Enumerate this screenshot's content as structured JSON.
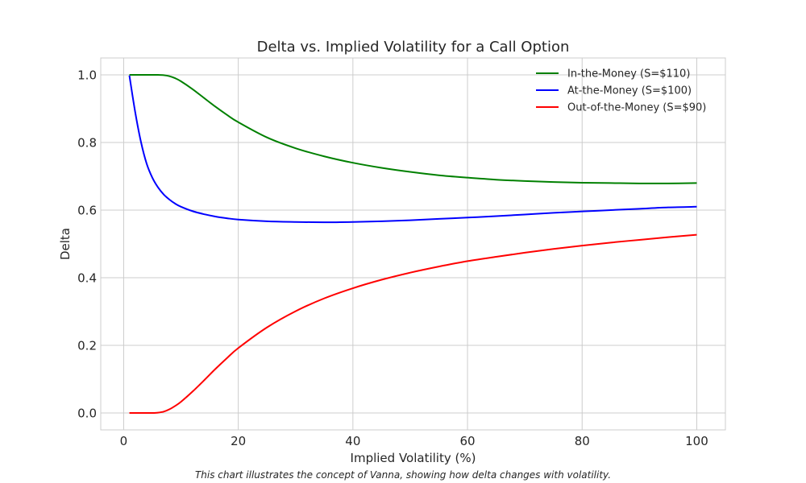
{
  "chart_data": {
    "type": "line",
    "title": "Delta vs. Implied Volatility for a Call Option",
    "xlabel": "Implied Volatility (%)",
    "ylabel": "Delta",
    "xlim": [
      -4,
      105
    ],
    "ylim": [
      -0.05,
      1.05
    ],
    "xticks": [
      0,
      20,
      40,
      60,
      80,
      100
    ],
    "yticks": [
      0.0,
      0.2,
      0.4,
      0.6,
      0.8,
      1.0
    ],
    "xtick_labels": [
      "0",
      "20",
      "40",
      "60",
      "80",
      "100"
    ],
    "ytick_labels": [
      "0.0",
      "0.2",
      "0.4",
      "0.6",
      "0.8",
      "1.0"
    ],
    "grid": true,
    "legend_position": "top-right",
    "x": [
      1,
      2,
      3,
      4,
      5,
      6,
      7,
      8,
      9,
      10,
      12,
      14,
      16,
      18,
      20,
      25,
      30,
      35,
      40,
      45,
      50,
      55,
      60,
      65,
      70,
      75,
      80,
      85,
      90,
      95,
      100
    ],
    "series": [
      {
        "name": "In-the-Money (S=$110)",
        "color": "#008000",
        "values": [
          1.0,
          1.0,
          1.0,
          1.0,
          1.0,
          1.0,
          0.999,
          0.996,
          0.99,
          0.981,
          0.958,
          0.932,
          0.906,
          0.882,
          0.86,
          0.815,
          0.783,
          0.759,
          0.74,
          0.725,
          0.713,
          0.703,
          0.696,
          0.69,
          0.686,
          0.683,
          0.681,
          0.68,
          0.679,
          0.679,
          0.68
        ]
      },
      {
        "name": "At-the-Money (S=$100)",
        "color": "#0000ff",
        "values": [
          0.998,
          0.891,
          0.803,
          0.738,
          0.696,
          0.667,
          0.646,
          0.631,
          0.619,
          0.61,
          0.597,
          0.588,
          0.581,
          0.576,
          0.572,
          0.567,
          0.565,
          0.564,
          0.565,
          0.567,
          0.57,
          0.574,
          0.578,
          0.582,
          0.587,
          0.592,
          0.596,
          0.6,
          0.604,
          0.608,
          0.61
        ]
      },
      {
        "name": "Out-of-the-Money (S=$90)",
        "color": "#ff0000",
        "values": [
          0.0,
          0.0,
          0.0,
          0.0,
          0.0,
          0.001,
          0.004,
          0.011,
          0.021,
          0.033,
          0.063,
          0.096,
          0.13,
          0.162,
          0.192,
          0.253,
          0.301,
          0.339,
          0.369,
          0.394,
          0.415,
          0.433,
          0.449,
          0.462,
          0.474,
          0.485,
          0.495,
          0.504,
          0.512,
          0.52,
          0.527
        ]
      }
    ]
  },
  "caption": "This chart illustrates the concept of Vanna, showing how delta changes with volatility."
}
